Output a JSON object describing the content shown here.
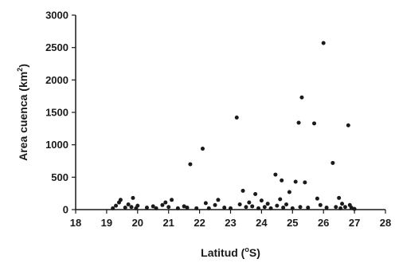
{
  "chart_data": {
    "type": "scatter",
    "title": "",
    "xlabel": "Latitud (°S)",
    "ylabel": "Area cuenca (km²)",
    "xlabel_parts": {
      "pre": "Latitud (",
      "deg": "o",
      "post": "S)"
    },
    "ylabel_parts": {
      "pre": "Area cuenca (km",
      "sup": "2",
      "post": ")"
    },
    "xlim": [
      18,
      28
    ],
    "ylim": [
      0,
      3000
    ],
    "xticks": [
      "18",
      "19",
      "20",
      "21",
      "22",
      "23",
      "24",
      "25",
      "26",
      "27",
      "28"
    ],
    "yticks": [
      "0",
      "500",
      "1000",
      "1500",
      "2000",
      "2500",
      "3000"
    ],
    "grid": false,
    "legend": "none",
    "marker_color": "#1a1a1a",
    "series": [
      {
        "values": [
          {
            "x": 19.2,
            "y": 20
          },
          {
            "x": 19.3,
            "y": 60
          },
          {
            "x": 19.4,
            "y": 110
          },
          {
            "x": 19.45,
            "y": 150
          },
          {
            "x": 19.6,
            "y": 30
          },
          {
            "x": 19.7,
            "y": 80
          },
          {
            "x": 19.8,
            "y": 40
          },
          {
            "x": 19.85,
            "y": 180
          },
          {
            "x": 19.95,
            "y": 20
          },
          {
            "x": 20.0,
            "y": 60
          },
          {
            "x": 20.3,
            "y": 30
          },
          {
            "x": 20.5,
            "y": 50
          },
          {
            "x": 20.6,
            "y": 20
          },
          {
            "x": 20.8,
            "y": 70
          },
          {
            "x": 20.9,
            "y": 110
          },
          {
            "x": 21.0,
            "y": 40
          },
          {
            "x": 21.1,
            "y": 150
          },
          {
            "x": 21.3,
            "y": 20
          },
          {
            "x": 21.5,
            "y": 50
          },
          {
            "x": 21.6,
            "y": 30
          },
          {
            "x": 21.7,
            "y": 700
          },
          {
            "x": 21.9,
            "y": 20
          },
          {
            "x": 22.1,
            "y": 940
          },
          {
            "x": 22.2,
            "y": 100
          },
          {
            "x": 22.3,
            "y": 20
          },
          {
            "x": 22.5,
            "y": 70
          },
          {
            "x": 22.6,
            "y": 150
          },
          {
            "x": 22.8,
            "y": 30
          },
          {
            "x": 23.0,
            "y": 20
          },
          {
            "x": 23.2,
            "y": 1420
          },
          {
            "x": 23.3,
            "y": 80
          },
          {
            "x": 23.4,
            "y": 290
          },
          {
            "x": 23.5,
            "y": 40
          },
          {
            "x": 23.6,
            "y": 110
          },
          {
            "x": 23.7,
            "y": 50
          },
          {
            "x": 23.8,
            "y": 240
          },
          {
            "x": 23.9,
            "y": 20
          },
          {
            "x": 24.0,
            "y": 140
          },
          {
            "x": 24.1,
            "y": 40
          },
          {
            "x": 24.2,
            "y": 90
          },
          {
            "x": 24.3,
            "y": 20
          },
          {
            "x": 24.45,
            "y": 540
          },
          {
            "x": 24.5,
            "y": 60
          },
          {
            "x": 24.6,
            "y": 160
          },
          {
            "x": 24.65,
            "y": 450
          },
          {
            "x": 24.7,
            "y": 30
          },
          {
            "x": 24.8,
            "y": 80
          },
          {
            "x": 24.9,
            "y": 270
          },
          {
            "x": 25.0,
            "y": 20
          },
          {
            "x": 25.1,
            "y": 430
          },
          {
            "x": 25.2,
            "y": 1340
          },
          {
            "x": 25.25,
            "y": 40
          },
          {
            "x": 25.3,
            "y": 1730
          },
          {
            "x": 25.4,
            "y": 420
          },
          {
            "x": 25.5,
            "y": 30
          },
          {
            "x": 25.7,
            "y": 1330
          },
          {
            "x": 25.8,
            "y": 170
          },
          {
            "x": 25.9,
            "y": 70
          },
          {
            "x": 26.0,
            "y": 2570
          },
          {
            "x": 26.1,
            "y": 30
          },
          {
            "x": 26.3,
            "y": 720
          },
          {
            "x": 26.4,
            "y": 40
          },
          {
            "x": 26.5,
            "y": 180
          },
          {
            "x": 26.55,
            "y": 20
          },
          {
            "x": 26.6,
            "y": 90
          },
          {
            "x": 26.7,
            "y": 40
          },
          {
            "x": 26.8,
            "y": 1300
          },
          {
            "x": 26.85,
            "y": 70
          },
          {
            "x": 26.9,
            "y": 30
          },
          {
            "x": 27.0,
            "y": 10
          }
        ]
      }
    ]
  }
}
